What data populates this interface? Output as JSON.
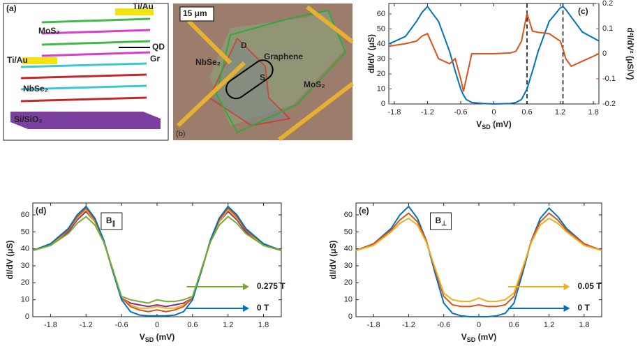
{
  "panels": {
    "a": {
      "label": "(a)",
      "texts": [
        "Ti/Au",
        "MoS₂",
        "QD",
        "Gr",
        "Ti/Au",
        "NbSe₂",
        "Si/SiO₂"
      ]
    },
    "b": {
      "label": "(b)",
      "texts": [
        "15 μm",
        "NbSe₂",
        "D",
        "Graphene",
        "S",
        "MoS₂"
      ]
    }
  },
  "chart_data": [
    {
      "type": "line",
      "panel_label": "(c)",
      "xlabel": {
        "text": "V",
        "sub": "SD",
        "unit": " (mV)"
      },
      "ylabel": "dI/dV (μS)",
      "y2label": "d²I/dV² (μS/V)",
      "xlim": [
        -1.9,
        1.9
      ],
      "xticks": [
        -1.8,
        -1.2,
        -0.6,
        0,
        0.6,
        1.2,
        1.8
      ],
      "ylim": [
        0,
        67
      ],
      "yticks": [
        0,
        10,
        20,
        30,
        40,
        50,
        60
      ],
      "y2lim": [
        -0.2,
        0.2
      ],
      "y2ticks": [
        -0.2,
        -0.1,
        0,
        0.1,
        0.2
      ],
      "vlines": [
        0.6,
        1.25
      ],
      "x": [
        -1.9,
        -1.6,
        -1.4,
        -1.3,
        -1.2,
        -1.0,
        -0.8,
        -0.7,
        -0.6,
        -0.55,
        -0.5,
        -0.45,
        -0.4,
        -0.2,
        0,
        0.3,
        0.4,
        0.5,
        0.6,
        0.7,
        0.8,
        1.0,
        1.2,
        1.25,
        1.3,
        1.4,
        1.6,
        1.9
      ],
      "series": [
        {
          "color": "#0072BD",
          "axis": "y",
          "values": [
            40,
            45,
            55,
            61,
            65,
            55,
            35,
            22,
            10,
            6,
            3,
            2,
            1,
            0.3,
            0,
            0.3,
            1,
            3,
            10,
            22,
            35,
            55,
            64,
            65,
            63,
            58,
            48,
            42
          ]
        },
        {
          "color": "#D95319",
          "axis": "y2",
          "values": [
            0.03,
            0.04,
            0.05,
            0.07,
            0.08,
            -0.02,
            -0.04,
            -0.02,
            -0.1,
            -0.15,
            -0.1,
            -0.05,
            0,
            0,
            0,
            0.003,
            0.01,
            0.05,
            0.16,
            0.09,
            0.085,
            0.08,
            0.05,
            0.02,
            -0.02,
            -0.05,
            -0.03,
            0
          ]
        }
      ]
    },
    {
      "type": "line",
      "panel_label": "(d)",
      "xlabel": {
        "text": "V",
        "sub": "SD",
        "unit": " (mV)"
      },
      "ylabel": "dI/dV (μS)",
      "box_label": {
        "text": "B",
        "sub": "∥"
      },
      "xlim": [
        -2.1,
        2.1
      ],
      "xticks": [
        -1.8,
        -1.2,
        -0.6,
        0,
        0.6,
        1.2,
        1.8
      ],
      "ylim": [
        0,
        67
      ],
      "yticks": [
        0,
        10,
        20,
        30,
        40,
        50,
        60
      ],
      "x": [
        -2.1,
        -1.8,
        -1.5,
        -1.35,
        -1.2,
        -1.05,
        -0.9,
        -0.75,
        -0.6,
        -0.45,
        -0.3,
        -0.15,
        0,
        0.15,
        0.3,
        0.45,
        0.6,
        0.75,
        0.9,
        1.05,
        1.2,
        1.35,
        1.5,
        1.8,
        2.1
      ],
      "series": [
        {
          "color": "#7E2F8E",
          "values": [
            39,
            42,
            50,
            57,
            62,
            56,
            44,
            28,
            11,
            8,
            7,
            6,
            7,
            6,
            7,
            8,
            11,
            28,
            44,
            56,
            62,
            57,
            50,
            42,
            39
          ]
        },
        {
          "color": "#EDB120",
          "values": [
            39,
            42,
            51,
            58,
            63,
            56,
            44,
            27,
            11,
            7,
            5,
            5,
            6,
            5,
            5,
            7,
            11,
            27,
            44,
            56,
            63,
            58,
            51,
            42,
            39
          ]
        },
        {
          "color": "#D95319",
          "values": [
            39,
            43,
            51,
            59,
            64,
            57,
            45,
            27,
            11,
            6,
            4,
            3,
            4,
            3,
            4,
            6,
            11,
            27,
            45,
            57,
            64,
            59,
            51,
            43,
            39
          ]
        },
        {
          "name": "0 T",
          "color": "#0072BD",
          "values": [
            39,
            43,
            52,
            60,
            65,
            58,
            45,
            27,
            10,
            3,
            1,
            0.5,
            0.5,
            0.5,
            1,
            3,
            10,
            27,
            45,
            58,
            65,
            60,
            52,
            43,
            39
          ]
        },
        {
          "name": "0.275 T",
          "color": "#77AC30",
          "values": [
            39,
            42,
            49,
            55,
            59,
            54,
            44,
            28,
            12,
            10,
            9,
            8,
            10,
            9,
            9,
            10,
            12,
            28,
            44,
            54,
            59,
            55,
            49,
            42,
            39
          ]
        }
      ]
    },
    {
      "type": "line",
      "panel_label": "(e)",
      "xlabel": {
        "text": "V",
        "sub": "SD",
        "unit": " (mV)"
      },
      "ylabel": "dI/dV (μS)",
      "box_label": {
        "text": "B",
        "sub": "⊥"
      },
      "xlim": [
        -2.1,
        2.1
      ],
      "xticks": [
        -1.8,
        -1.2,
        -0.6,
        0,
        0.6,
        1.2,
        1.8
      ],
      "ylim": [
        0,
        67
      ],
      "yticks": [
        0,
        10,
        20,
        30,
        40,
        50,
        60
      ],
      "x": [
        -2.1,
        -1.8,
        -1.5,
        -1.35,
        -1.2,
        -1.05,
        -0.9,
        -0.75,
        -0.6,
        -0.45,
        -0.3,
        -0.15,
        0,
        0.15,
        0.3,
        0.45,
        0.6,
        0.75,
        0.9,
        1.05,
        1.2,
        1.35,
        1.5,
        1.8,
        2.1
      ],
      "series": [
        {
          "name": "0 T",
          "color": "#0072BD",
          "values": [
            39,
            43,
            52,
            60,
            65,
            58,
            45,
            26,
            8,
            2,
            0.5,
            0,
            0,
            0,
            0.5,
            2,
            8,
            26,
            45,
            58,
            64,
            59,
            52,
            43,
            39
          ]
        },
        {
          "color": "#D95319",
          "values": [
            39,
            43,
            51,
            57,
            61,
            56,
            45,
            28,
            12,
            7,
            6,
            6,
            7,
            6,
            6,
            7,
            12,
            28,
            45,
            56,
            61,
            57,
            51,
            43,
            39
          ]
        },
        {
          "name": "0.05 T",
          "color": "#EDB120",
          "values": [
            39,
            42,
            50,
            55,
            58,
            54,
            44,
            29,
            14,
            10,
            9,
            9,
            11,
            9,
            9,
            10,
            14,
            29,
            44,
            54,
            58,
            55,
            50,
            42,
            39
          ]
        }
      ]
    }
  ]
}
